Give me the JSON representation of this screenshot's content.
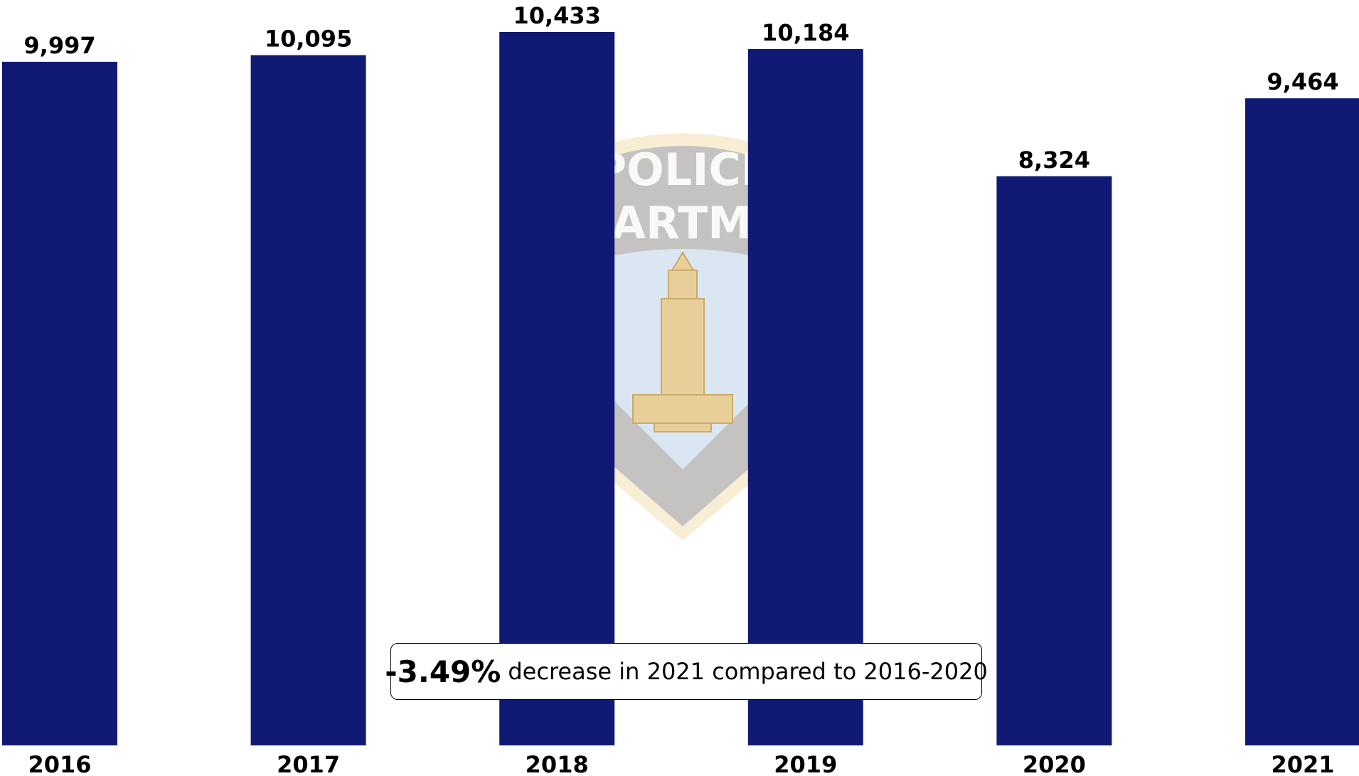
{
  "chart_data": {
    "type": "bar",
    "categories": [
      "2016",
      "2017",
      "2018",
      "2019",
      "2020",
      "2021"
    ],
    "values": [
      9997,
      10095,
      10433,
      10184,
      8324,
      9464
    ],
    "value_labels": [
      "9,997",
      "10,095",
      "10,433",
      "10,184",
      "8,324",
      "9,464"
    ],
    "title": "",
    "xlabel": "",
    "ylabel": "",
    "ylim": [
      0,
      10433
    ],
    "grid": false,
    "legend": "none",
    "bar_color": "#101a75",
    "annotation": {
      "percent": "-3.49%",
      "text": "decrease in 2021 compared to 2016-2020"
    }
  },
  "watermark": {
    "type": "police-department-badge",
    "colors": {
      "shield_dark": "#b4b4b9",
      "shield_border": "#f2dfb3",
      "sky": "#dae6f2",
      "capitol": "#e8cf9a"
    }
  }
}
